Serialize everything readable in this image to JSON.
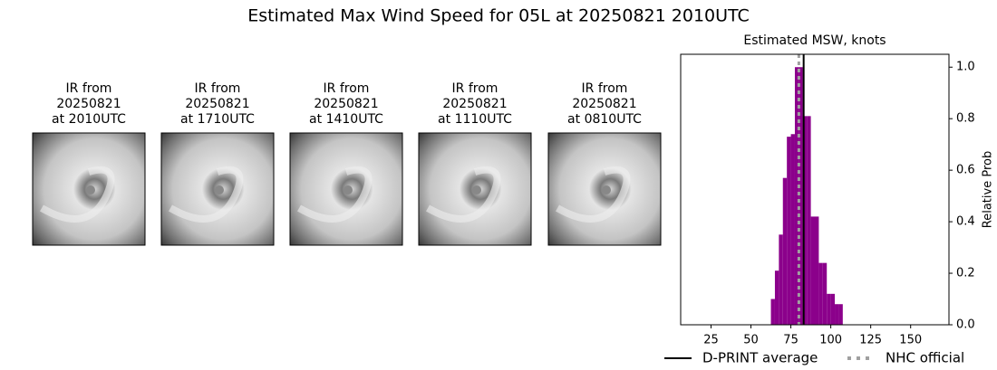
{
  "title": "Estimated Max Wind Speed for 05L at 20250821 2010UTC",
  "images": [
    {
      "title_lines": [
        "IR from",
        "20250821",
        "at 2010UTC"
      ]
    },
    {
      "title_lines": [
        "IR from",
        "20250821",
        "at 1710UTC"
      ]
    },
    {
      "title_lines": [
        "IR from",
        "20250821",
        "at 1410UTC"
      ]
    },
    {
      "title_lines": [
        "IR from",
        "20250821",
        "at 1110UTC"
      ]
    },
    {
      "title_lines": [
        "IR from",
        "20250821",
        "at 0810UTC"
      ]
    }
  ],
  "chart_data": {
    "type": "histogram",
    "title": "Estimated MSW, knots",
    "y_label": "Relative Prob",
    "bins": [
      62.5,
      65,
      67.5,
      70,
      72.5,
      75,
      77.5,
      80,
      82.5,
      85,
      87.5,
      90,
      92.5,
      95,
      97.5,
      100,
      102.5,
      105,
      107.5
    ],
    "values": [
      0.1,
      0.21,
      0.35,
      0.57,
      0.73,
      0.74,
      1.0,
      1.0,
      0.81,
      0.81,
      0.42,
      0.42,
      0.24,
      0.24,
      0.12,
      0.12,
      0.08,
      0.08
    ],
    "color": "#8b008b",
    "xlim": [
      6,
      174
    ],
    "ylim": [
      0,
      1.05
    ],
    "xticks": [
      25,
      50,
      75,
      100,
      125,
      150
    ],
    "yticks": [
      {
        "value": 0,
        "label": "0.0"
      },
      0.2,
      0.4,
      0.6,
      0.8,
      {
        "value": 1,
        "label": "1.0"
      }
    ],
    "lines": [
      {
        "name": "D-PRINT average",
        "value": 83,
        "color": "#000000",
        "style": "solid"
      },
      {
        "name": "NHC official",
        "value": 80,
        "color": "#a0a0a0",
        "style": "dotted"
      }
    ]
  }
}
